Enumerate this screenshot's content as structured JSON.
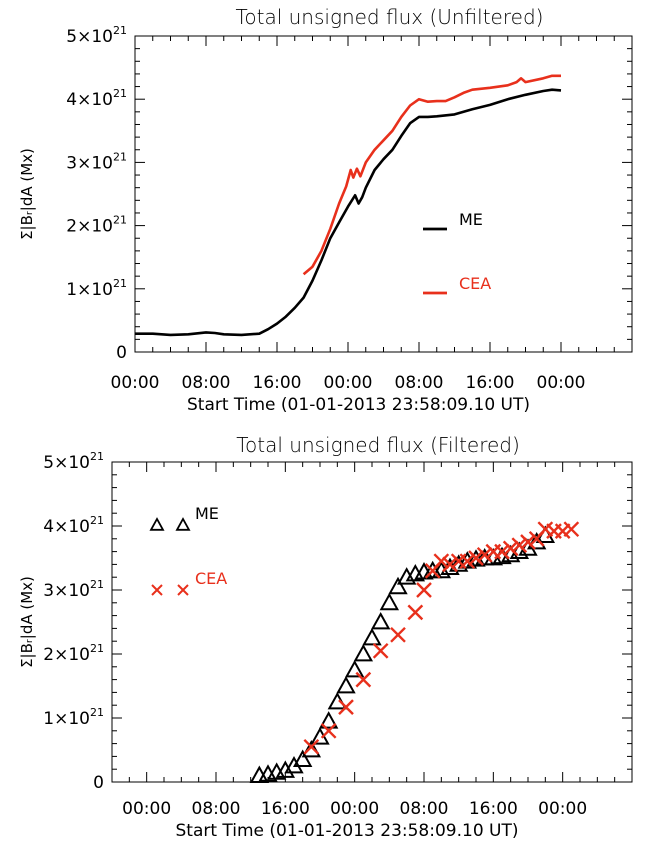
{
  "chart_data": [
    {
      "type": "line",
      "title": "Total unsigned flux (Unfiltered)",
      "xlabel": "Start Time (01-01-2013 23:58:09.10 UT)",
      "ylabel": "Σ|Bᵣ|dA (Mx)",
      "x_tick_labels": [
        "00:00",
        "08:00",
        "16:00",
        "00:00",
        "08:00",
        "16:00",
        "00:00"
      ],
      "x_tick_hours": [
        0,
        8,
        16,
        24,
        32,
        40,
        48
      ],
      "xlim_hours": [
        0,
        56
      ],
      "ylim": [
        0,
        5e+21
      ],
      "y_ticks": [
        {
          "value": 0,
          "mant": "0",
          "exp": ""
        },
        {
          "value": 1e+21,
          "mant": "1×10",
          "exp": "21"
        },
        {
          "value": 2e+21,
          "mant": "2×10",
          "exp": "21"
        },
        {
          "value": 3e+21,
          "mant": "3×10",
          "exp": "21"
        },
        {
          "value": 4e+21,
          "mant": "4×10",
          "exp": "21"
        },
        {
          "value": 5e+21,
          "mant": "5×10",
          "exp": "21"
        }
      ],
      "legend": [
        {
          "name": "ME",
          "color": "#000000",
          "marker": "line"
        },
        {
          "name": "CEA",
          "color": "#e8301c",
          "marker": "line"
        }
      ],
      "series": [
        {
          "name": "ME",
          "color": "#000000",
          "x": [
            0,
            2,
            4,
            6,
            8,
            9,
            10,
            12,
            14,
            15,
            16,
            17,
            18,
            19,
            20,
            21,
            22,
            23,
            24,
            24.8,
            25.2,
            25.6,
            26,
            27,
            28,
            29,
            30,
            31,
            32,
            33,
            34,
            36,
            38,
            40,
            42,
            44,
            46,
            47,
            48
          ],
          "y": [
            2.9e+20,
            2.9e+20,
            2.7e+20,
            2.8e+20,
            3.1e+20,
            3e+20,
            2.8e+20,
            2.7e+20,
            2.9e+20,
            3.6e+20,
            4.5e+20,
            5.6e+20,
            7e+20,
            8.6e+20,
            1.13e+21,
            1.45e+21,
            1.8e+21,
            2.05e+21,
            2.3e+21,
            2.48e+21,
            2.35e+21,
            2.45e+21,
            2.6e+21,
            2.88e+21,
            3.05e+21,
            3.2e+21,
            3.42e+21,
            3.62e+21,
            3.72e+21,
            3.72e+21,
            3.73e+21,
            3.76e+21,
            3.84e+21,
            3.91e+21,
            4e+21,
            4.07e+21,
            4.13e+21,
            4.15e+21,
            4.14e+21
          ]
        },
        {
          "name": "CEA",
          "color": "#e8301c",
          "x": [
            19,
            20,
            21,
            22,
            23,
            23.8,
            24.3,
            24.6,
            25,
            25.4,
            26,
            27,
            28,
            29,
            30,
            31,
            32,
            33,
            34,
            35,
            36,
            37,
            38,
            40,
            42,
            43,
            43.5,
            44,
            46,
            47,
            48
          ],
          "y": [
            1.23e+21,
            1.35e+21,
            1.6e+21,
            1.95e+21,
            2.35e+21,
            2.62e+21,
            2.88e+21,
            2.76e+21,
            2.9e+21,
            2.78e+21,
            3e+21,
            3.2e+21,
            3.35e+21,
            3.5e+21,
            3.72e+21,
            3.9e+21,
            4e+21,
            3.96e+21,
            3.97e+21,
            3.97e+21,
            4.03e+21,
            4.1e+21,
            4.15e+21,
            4.18e+21,
            4.22e+21,
            4.27e+21,
            4.33e+21,
            4.27e+21,
            4.33e+21,
            4.37e+21,
            4.37e+21
          ]
        }
      ]
    },
    {
      "type": "scatter",
      "title": "Total unsigned flux (Filtered)",
      "xlabel": "Start Time (01-01-2013 23:58:09.10 UT)",
      "ylabel": "Σ|Bᵣ|dA (Mx)",
      "x_tick_labels": [
        "00:00",
        "08:00",
        "16:00",
        "00:00",
        "08:00",
        "16:00",
        "00:00"
      ],
      "x_tick_hours": [
        0,
        8,
        16,
        24,
        32,
        40,
        48
      ],
      "xlim_hours": [
        -4,
        56
      ],
      "ylim": [
        0,
        5e+21
      ],
      "y_ticks": [
        {
          "value": 0,
          "mant": "0",
          "exp": ""
        },
        {
          "value": 1e+21,
          "mant": "1×10",
          "exp": "21"
        },
        {
          "value": 2e+21,
          "mant": "2×10",
          "exp": "21"
        },
        {
          "value": 3e+21,
          "mant": "3×10",
          "exp": "21"
        },
        {
          "value": 4e+21,
          "mant": "4×10",
          "exp": "21"
        },
        {
          "value": 5e+21,
          "mant": "5×10",
          "exp": "21"
        }
      ],
      "legend": [
        {
          "name": "ME",
          "color": "#000000",
          "marker": "triangle"
        },
        {
          "name": "CEA",
          "color": "#e8301c",
          "marker": "x"
        }
      ],
      "series": [
        {
          "name": "ME",
          "color": "#000000",
          "marker": "triangle",
          "x": [
            13,
            14,
            15,
            16,
            17,
            18,
            19,
            20,
            21,
            22,
            23,
            24,
            25,
            26,
            27,
            28,
            29,
            30,
            31,
            32,
            33,
            34,
            35,
            36,
            37,
            38,
            39,
            40,
            41,
            42,
            43,
            44,
            45,
            46
          ],
          "y": [
            1e+20,
            1.2e+20,
            1.5e+20,
            1.8e+20,
            2.5e+20,
            3.5e+20,
            5e+20,
            7e+20,
            9.5e+20,
            1.25e+21,
            1.5e+21,
            1.75e+21,
            2e+21,
            2.25e+21,
            2.5e+21,
            2.8e+21,
            3.05e+21,
            3.2e+21,
            3.25e+21,
            3.28e+21,
            3.3e+21,
            3.3e+21,
            3.35e+21,
            3.4e+21,
            3.45e+21,
            3.48e+21,
            3.5e+21,
            3.5e+21,
            3.52e+21,
            3.55e+21,
            3.6e+21,
            3.65e+21,
            3.75e+21,
            3.85e+21
          ]
        },
        {
          "name": "CEA",
          "color": "#e8301c",
          "marker": "x",
          "x": [
            19,
            21,
            23,
            25,
            27,
            29,
            31,
            32,
            33,
            34,
            35,
            36,
            37,
            38,
            39,
            40,
            41,
            42,
            43,
            44,
            45,
            46,
            47,
            48,
            49
          ],
          "y": [
            5.5e+20,
            8e+20,
            1.17e+21,
            1.6e+21,
            2.05e+21,
            2.3e+21,
            2.65e+21,
            3e+21,
            3.3e+21,
            3.45e+21,
            3.4e+21,
            3.45e+21,
            3.45e+21,
            3.5e+21,
            3.55e+21,
            3.6e+21,
            3.6e+21,
            3.65e+21,
            3.7e+21,
            3.75e+21,
            3.8e+21,
            3.95e+21,
            3.92e+21,
            3.92e+21,
            3.95e+21
          ]
        }
      ]
    }
  ]
}
